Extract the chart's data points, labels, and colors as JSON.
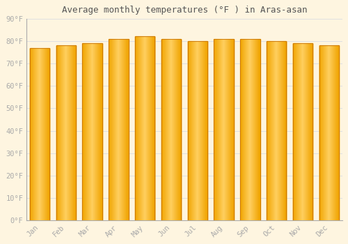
{
  "title": "Average monthly temperatures (°F ) in Aras-asan",
  "months": [
    "Jan",
    "Feb",
    "Mar",
    "Apr",
    "May",
    "Jun",
    "Jul",
    "Aug",
    "Sep",
    "Oct",
    "Nov",
    "Dec"
  ],
  "values": [
    77,
    78,
    79,
    81,
    82,
    81,
    80,
    81,
    81,
    80,
    79,
    78
  ],
  "bar_color_center": "#FFD966",
  "bar_color_edge": "#F0A500",
  "bar_border_color": "#C87000",
  "background_color": "#FEF5E0",
  "plot_bg_color": "#FEF5E0",
  "grid_color": "#E0E0E0",
  "ylim": [
    0,
    90
  ],
  "yticks": [
    0,
    10,
    20,
    30,
    40,
    50,
    60,
    70,
    80,
    90
  ],
  "ytick_labels": [
    "0°F",
    "10°F",
    "20°F",
    "30°F",
    "40°F",
    "50°F",
    "60°F",
    "70°F",
    "80°F",
    "90°F"
  ],
  "title_fontsize": 9,
  "tick_fontsize": 7.5,
  "tick_color": "#AAAAAA",
  "spine_color": "#AAAAAA",
  "bar_width": 0.75
}
